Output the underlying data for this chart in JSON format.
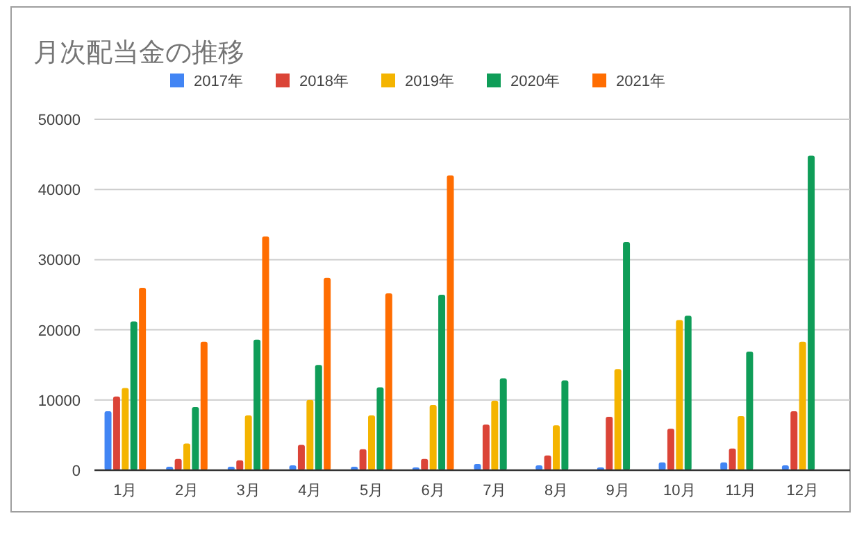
{
  "chart_data": {
    "type": "bar",
    "title": "月次配当金の推移",
    "categories": [
      "1月",
      "2月",
      "3月",
      "4月",
      "5月",
      "6月",
      "7月",
      "8月",
      "9月",
      "10月",
      "11月",
      "12月"
    ],
    "series": [
      {
        "name": "2017年",
        "color": "#4285f4",
        "values": [
          8400,
          500,
          500,
          700,
          500,
          400,
          900,
          700,
          400,
          1100,
          1100,
          700
        ]
      },
      {
        "name": "2018年",
        "color": "#db4437",
        "values": [
          10500,
          1600,
          1400,
          3600,
          3000,
          1600,
          6500,
          2100,
          7600,
          5900,
          3100,
          8400
        ]
      },
      {
        "name": "2019年",
        "color": "#f4b400",
        "values": [
          11700,
          3800,
          7800,
          10000,
          7800,
          9300,
          9900,
          6400,
          14400,
          21400,
          7700,
          18300
        ]
      },
      {
        "name": "2020年",
        "color": "#0f9d58",
        "values": [
          21200,
          9000,
          18600,
          15000,
          11800,
          25000,
          13100,
          12800,
          32500,
          22000,
          16900,
          44800
        ]
      },
      {
        "name": "2021年",
        "color": "#ff6d01",
        "values": [
          26000,
          18300,
          33300,
          27400,
          25200,
          42000,
          null,
          null,
          null,
          null,
          null,
          null
        ]
      }
    ],
    "ylim": [
      0,
      50000
    ],
    "yticks": [
      0,
      10000,
      20000,
      30000,
      40000,
      50000
    ],
    "grid": "y",
    "legend": "top"
  }
}
